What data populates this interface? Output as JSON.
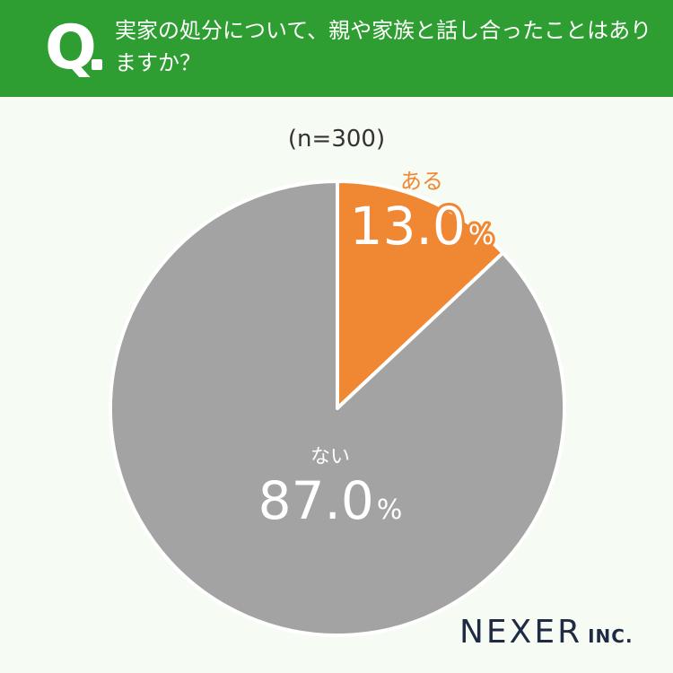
{
  "header": {
    "q_letter": "Q",
    "question": "実家の処分について、親や家族と話し合ったことはありますか？"
  },
  "sample_label": "(n=300)",
  "chart_data": {
    "type": "pie",
    "title": "",
    "slices": [
      {
        "label": "ある",
        "value": 13.0,
        "display": "13.0",
        "unit": "%",
        "color": "#f08733"
      },
      {
        "label": "ない",
        "value": 87.0,
        "display": "87.0",
        "unit": "%",
        "color": "#a3a3a3"
      }
    ]
  },
  "brand": {
    "name": "NEXER",
    "suffix": "INC."
  }
}
